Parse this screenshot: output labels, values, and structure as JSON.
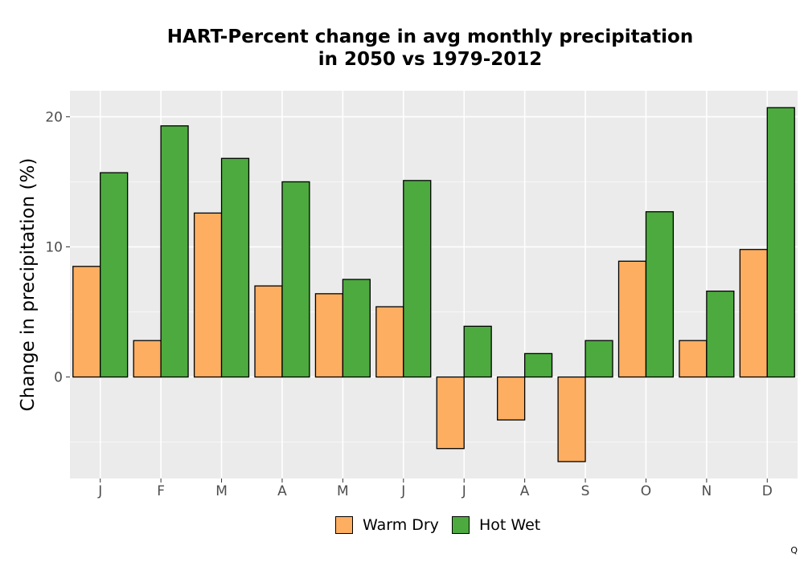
{
  "chart_data": {
    "type": "bar",
    "title_line1": "HART-Percent change in avg monthly precipitation",
    "title_line2": "in 2050 vs 1979-2012",
    "xlabel": "",
    "ylabel": "Change in precipitation (%)",
    "categories": [
      "J",
      "F",
      "M",
      "A",
      "M",
      "J",
      "J",
      "A",
      "S",
      "O",
      "N",
      "D"
    ],
    "series": [
      {
        "name": "Warm Dry",
        "color": "#FDAE61",
        "values": [
          8.5,
          2.8,
          12.6,
          7.0,
          6.4,
          5.4,
          -5.5,
          -3.3,
          -6.5,
          8.9,
          2.8,
          9.8
        ]
      },
      {
        "name": "Hot Wet",
        "color": "#4DAA3F",
        "values": [
          15.7,
          19.3,
          16.8,
          15.0,
          7.5,
          15.1,
          3.9,
          1.8,
          2.8,
          12.7,
          6.6,
          20.7
        ]
      }
    ],
    "ylim": [
      -7.8,
      22.0
    ],
    "yticks": [
      0,
      10,
      20
    ],
    "grid": true,
    "legend": "bottom"
  },
  "corner_mark": "Q"
}
